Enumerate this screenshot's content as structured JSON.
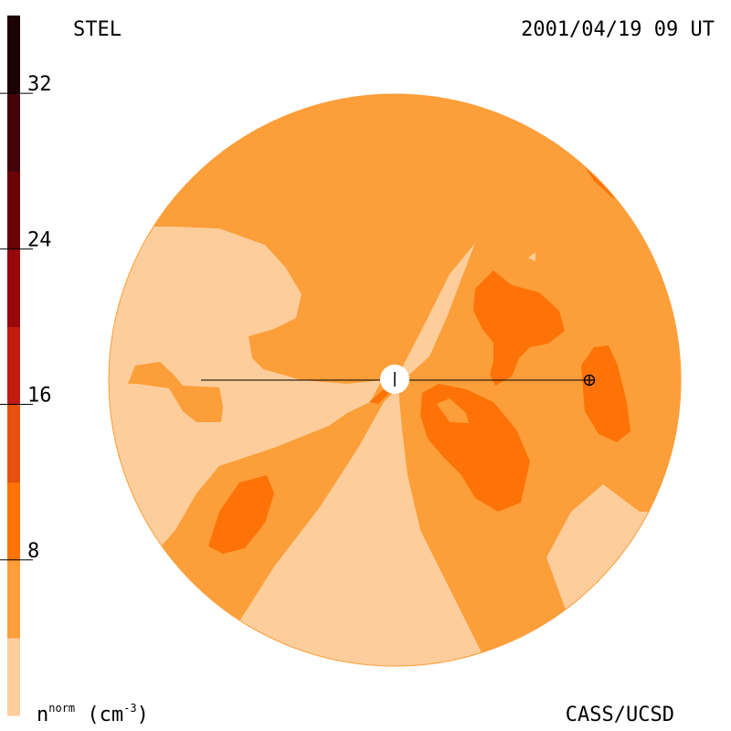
{
  "header": {
    "title_left": "STEL",
    "datetime": "2001/04/19 09 UT"
  },
  "footer": {
    "credit": "CASS/UCSD",
    "unit_base": "n",
    "unit_sup": "norm",
    "unit_paren": "(cm",
    "unit_exp": "-3",
    "unit_close": ")"
  },
  "chart_data": {
    "type": "heatmap",
    "title": "STEL",
    "timestamp": "2001/04/19 09 UT",
    "colorbar": {
      "label": "n^norm (cm^-3)",
      "range": [
        0,
        36
      ],
      "tick_values": [
        8,
        16,
        24,
        32
      ],
      "tick_labels": [
        "8",
        "16",
        "24",
        "32"
      ],
      "levels": [
        {
          "min": 0,
          "max": 4,
          "color": "#fdcd9c"
        },
        {
          "min": 4,
          "max": 8,
          "color": "#fc9e39"
        },
        {
          "min": 8,
          "max": 12,
          "color": "#fd7307"
        },
        {
          "min": 12,
          "max": 16,
          "color": "#e6520e"
        },
        {
          "min": 16,
          "max": 20,
          "color": "#c01c10"
        },
        {
          "min": 20,
          "max": 24,
          "color": "#96080a"
        },
        {
          "min": 24,
          "max": 28,
          "color": "#6a0307"
        },
        {
          "min": 28,
          "max": 32,
          "color": "#420309"
        },
        {
          "min": 32,
          "max": 36,
          "color": "#1c0204"
        }
      ]
    },
    "markers": [
      "sun-center",
      "earth"
    ]
  }
}
